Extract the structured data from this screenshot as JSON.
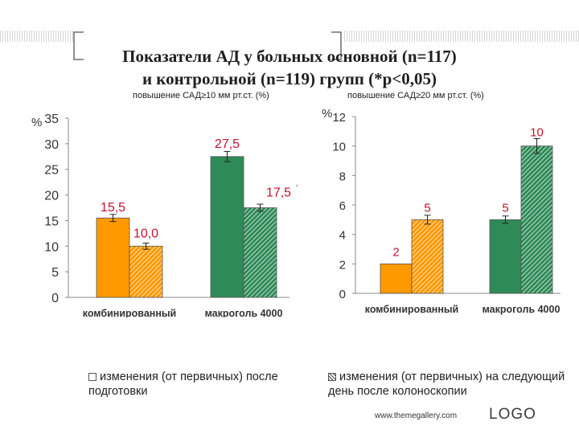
{
  "title": {
    "line1": "Показатели АД у больных основной (n=117)",
    "line2": "и контрольной (n=119) групп (*p<0,05)"
  },
  "colors": {
    "orange": "#ff9900",
    "green": "#2e8b57",
    "orange_hatch": "#ff9900",
    "green_hatch": "#2e8b57",
    "label_red": "#c8102e"
  },
  "chart_data": [
    {
      "type": "bar",
      "subtitle": "повышение САД≥10 мм рт.ст. (%)",
      "ylabel": "%",
      "ylim": [
        0,
        35
      ],
      "yticks": [
        "0",
        "5",
        "10",
        "15",
        "20",
        "25",
        "30",
        "35"
      ],
      "categories": [
        "комбинированный",
        "макроголь 4000"
      ],
      "bars": [
        {
          "category": "комбинированный",
          "value": 15.5,
          "label": "15,5",
          "fill": "orange",
          "pattern": "solid",
          "error": 0.7
        },
        {
          "category": "комбинированный",
          "value": 10.0,
          "label": "10,0",
          "fill": "orange",
          "pattern": "hatch",
          "error": 0.6
        },
        {
          "category": "макроголь 4000",
          "value": 27.5,
          "label": "27,5",
          "fill": "green",
          "pattern": "solid",
          "error": 1.0
        },
        {
          "category": "макроголь 4000",
          "value": 17.5,
          "label": "17,5",
          "fill": "green",
          "pattern": "hatch",
          "error": 0.7,
          "asterisk": "*"
        }
      ]
    },
    {
      "type": "bar",
      "subtitle": "повышение САД≥20 мм рт.ст. (%)",
      "ylabel": "%",
      "ylim": [
        0,
        12
      ],
      "yticks": [
        "0",
        "2",
        "4",
        "6",
        "8",
        "10",
        "12"
      ],
      "categories": [
        "комбинированный",
        "макроголь 4000"
      ],
      "bars": [
        {
          "category": "комбинированный",
          "value": 2,
          "label": "2",
          "fill": "orange",
          "pattern": "solid",
          "error": 0
        },
        {
          "category": "комбинированный",
          "value": 5,
          "label": "5",
          "fill": "orange",
          "pattern": "hatch",
          "error": 0.3
        },
        {
          "category": "макроголь 4000",
          "value": 5,
          "label": "5",
          "fill": "green",
          "pattern": "solid",
          "error": 0.25
        },
        {
          "category": "макроголь 4000",
          "value": 10,
          "label": "10",
          "fill": "green",
          "pattern": "hatch",
          "error": 0.5
        }
      ]
    }
  ],
  "legend": {
    "solid": "изменения (от первичных) после подготовки",
    "hatched": "изменения (от первичных) на следующий день после колоноскопии"
  },
  "footer": {
    "url": "www.themegallery.com",
    "logo": "LOGO"
  }
}
